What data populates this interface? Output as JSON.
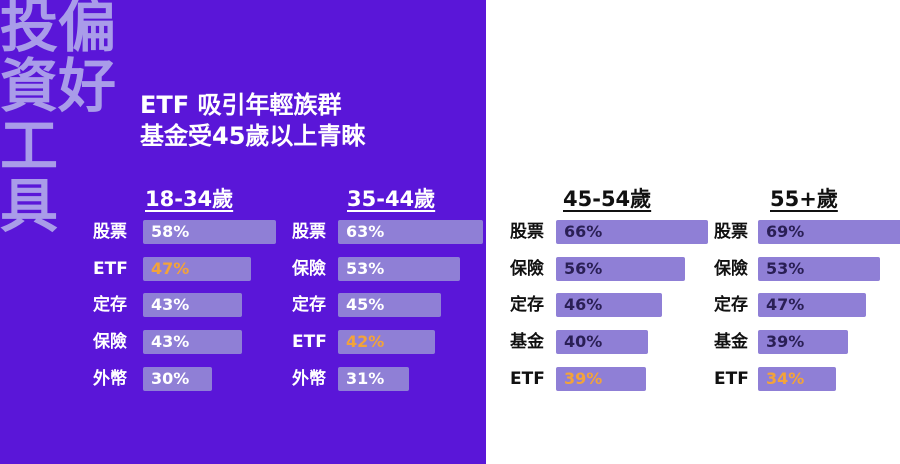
{
  "side_title": [
    "投偏",
    "資好",
    "工",
    "具"
  ],
  "headline": [
    "ETF 吸引年輕族群",
    "基金受45歲以上青睞"
  ],
  "colors": {
    "left_bg": "#5a16d8",
    "right_bg": "#ffffff",
    "bar": "#8f7fd6",
    "bar_highlight": "#8f7fd6",
    "value_text_dark": "#ffffff",
    "value_text_light": "#2a1f55",
    "highlight_value": "#f2a33a",
    "side_title": "#a99ce9"
  },
  "chart_data": {
    "type": "bar",
    "title": "ETF 吸引年輕族群 基金受45歲以上青睞",
    "groups": [
      {
        "name": "18-34歲",
        "items": [
          {
            "label": "股票",
            "value": 58,
            "display": "58%",
            "highlight": false
          },
          {
            "label": "ETF",
            "value": 47,
            "display": "47%",
            "highlight": true
          },
          {
            "label": "定存",
            "value": 43,
            "display": "43%",
            "highlight": false
          },
          {
            "label": "保險",
            "value": 43,
            "display": "43%",
            "highlight": false
          },
          {
            "label": "外幣",
            "value": 30,
            "display": "30%",
            "highlight": false
          }
        ]
      },
      {
        "name": "35-44歲",
        "items": [
          {
            "label": "股票",
            "value": 63,
            "display": "63%",
            "highlight": false
          },
          {
            "label": "保險",
            "value": 53,
            "display": "53%",
            "highlight": false
          },
          {
            "label": "定存",
            "value": 45,
            "display": "45%",
            "highlight": false
          },
          {
            "label": "ETF",
            "value": 42,
            "display": "42%",
            "highlight": true
          },
          {
            "label": "外幣",
            "value": 31,
            "display": "31%",
            "highlight": false
          }
        ]
      },
      {
        "name": "45-54歲",
        "items": [
          {
            "label": "股票",
            "value": 66,
            "display": "66%",
            "highlight": false
          },
          {
            "label": "保險",
            "value": 56,
            "display": "56%",
            "highlight": false
          },
          {
            "label": "定存",
            "value": 46,
            "display": "46%",
            "highlight": false
          },
          {
            "label": "基金",
            "value": 40,
            "display": "40%",
            "highlight": false
          },
          {
            "label": "ETF",
            "value": 39,
            "display": "39%",
            "highlight": true
          }
        ]
      },
      {
        "name": "55+歲",
        "items": [
          {
            "label": "股票",
            "value": 69,
            "display": "69%",
            "highlight": false
          },
          {
            "label": "保險",
            "value": 53,
            "display": "53%",
            "highlight": false
          },
          {
            "label": "定存",
            "value": 47,
            "display": "47%",
            "highlight": false
          },
          {
            "label": "基金",
            "value": 39,
            "display": "39%",
            "highlight": false
          },
          {
            "label": "ETF",
            "value": 34,
            "display": "34%",
            "highlight": true
          }
        ]
      }
    ]
  }
}
